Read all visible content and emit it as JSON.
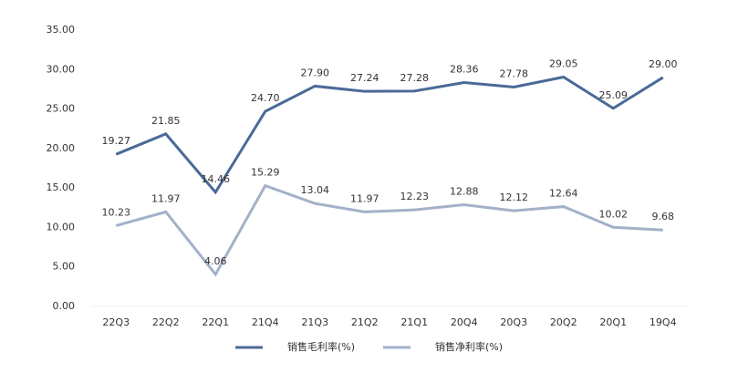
{
  "chart_data": {
    "type": "line",
    "categories": [
      "22Q3",
      "22Q2",
      "22Q1",
      "21Q4",
      "21Q3",
      "21Q2",
      "21Q1",
      "20Q4",
      "20Q3",
      "20Q2",
      "20Q1",
      "19Q4"
    ],
    "series": [
      {
        "name": "销售毛利率(%)",
        "color": "#4a6a97",
        "values": [
          19.27,
          21.85,
          14.46,
          24.7,
          27.9,
          27.24,
          27.28,
          28.36,
          27.78,
          29.05,
          25.09,
          29.0
        ],
        "value_labels": [
          "19.27",
          "21.85",
          "14.46",
          "24.70",
          "27.90",
          "27.24",
          "27.28",
          "28.36",
          "27.78",
          "29.05",
          "25.09",
          "29.00"
        ]
      },
      {
        "name": "销售净利率(%)",
        "color": "#a3b1c8",
        "values": [
          10.23,
          11.97,
          4.06,
          15.29,
          13.04,
          11.97,
          12.23,
          12.88,
          12.12,
          12.64,
          10.02,
          9.68
        ],
        "value_labels": [
          "10.23",
          "11.97",
          "4.06",
          "15.29",
          "13.04",
          "11.97",
          "12.23",
          "12.88",
          "12.12",
          "12.64",
          "10.02",
          "9.68"
        ]
      }
    ],
    "ylim": [
      0,
      35
    ],
    "yticks": [
      {
        "value": 0,
        "label": "0.00"
      },
      {
        "value": 5,
        "label": "5.00"
      },
      {
        "value": 10,
        "label": "10.00"
      },
      {
        "value": 15,
        "label": "15.00"
      },
      {
        "value": 20,
        "label": "20.00"
      },
      {
        "value": 25,
        "label": "25.00"
      },
      {
        "value": 30,
        "label": "30.00"
      },
      {
        "value": 35,
        "label": "35.00"
      }
    ],
    "legend": "bottom"
  }
}
